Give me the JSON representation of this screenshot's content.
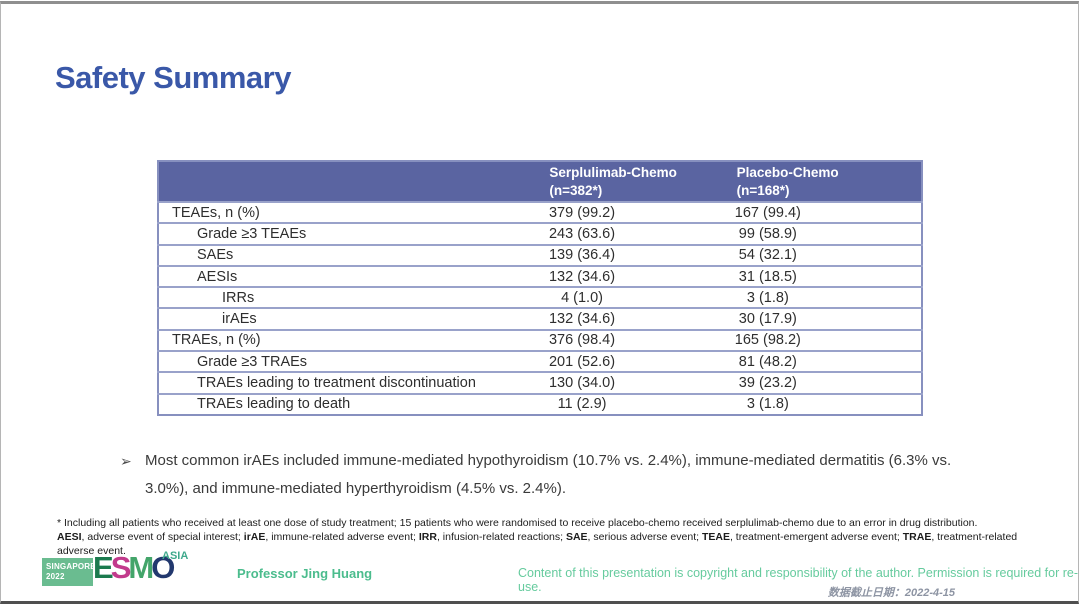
{
  "slide": {
    "title": "Safety Summary"
  },
  "table": {
    "col_headers": [
      {
        "line1": "Serplulimab-Chemo",
        "line2": "(n=382*)"
      },
      {
        "line1": "Placebo-Chemo",
        "line2": "(n=168*)"
      }
    ],
    "rows": [
      {
        "label": "TEAEs, n (%)",
        "indent": 0,
        "values": [
          "379 (99.2)",
          "167 (99.4)"
        ]
      },
      {
        "label": "Grade ≥3 TEAEs",
        "indent": 1,
        "values": [
          "243 (63.6)",
          "99 (58.9)"
        ]
      },
      {
        "label": "SAEs",
        "indent": 1,
        "values": [
          "139 (36.4)",
          "54 (32.1)"
        ]
      },
      {
        "label": "AESIs",
        "indent": 1,
        "values": [
          "132 (34.6)",
          "31 (18.5)"
        ]
      },
      {
        "label": "IRRs",
        "indent": 2,
        "values": [
          "4 (1.0)",
          "3 (1.8)"
        ]
      },
      {
        "label": "irAEs",
        "indent": 2,
        "values": [
          "132 (34.6)",
          "30 (17.9)"
        ]
      },
      {
        "label": "TRAEs, n (%)",
        "indent": 0,
        "values": [
          "376 (98.4)",
          "165 (98.2)"
        ]
      },
      {
        "label": "Grade ≥3 TRAEs",
        "indent": 1,
        "values": [
          "201 (52.6)",
          "81 (48.2)"
        ]
      },
      {
        "label": "TRAEs leading to treatment discontinuation",
        "indent": 1,
        "values": [
          "130 (34.0)",
          "39 (23.2)"
        ]
      },
      {
        "label": "TRAEs leading to death",
        "indent": 1,
        "values": [
          "11 (2.9)",
          "3 (1.8)"
        ]
      }
    ]
  },
  "bullet": {
    "marker": "➢",
    "text": "Most common irAEs included immune-mediated hypothyroidism (10.7% vs. 2.4%), immune-mediated dermatitis (6.3% vs. 3.0%), and immune-mediated hyperthyroidism (4.5% vs. 2.4%)."
  },
  "footnotes": {
    "line1": "* Including all patients who received at least one dose of study treatment; 15 patients who were randomised to receive placebo-chemo received serplulimab-chemo due to an error in drug distribution.",
    "line2_segments": [
      {
        "text": "AESI",
        "bold": true
      },
      {
        "text": ", adverse event of special interest; ",
        "bold": false
      },
      {
        "text": "irAE",
        "bold": true
      },
      {
        "text": ", immune-related adverse event; ",
        "bold": false
      },
      {
        "text": "IRR",
        "bold": true
      },
      {
        "text": ", infusion-related reactions; ",
        "bold": false
      },
      {
        "text": "SAE",
        "bold": true
      },
      {
        "text": ", serious adverse event; ",
        "bold": false
      },
      {
        "text": "TEAE",
        "bold": true
      },
      {
        "text": ", treatment-emergent adverse event; ",
        "bold": false
      },
      {
        "text": "TRAE",
        "bold": true
      },
      {
        "text": ", treatment-related adverse event.",
        "bold": false
      }
    ]
  },
  "footer": {
    "logo": {
      "badge_line1": "SINGAPORE",
      "badge_line2": "2022",
      "letters": [
        {
          "ch": "E",
          "color": "#1b7a4e"
        },
        {
          "ch": "S",
          "color": "#c23a8c"
        },
        {
          "ch": "M",
          "color": "#43a56a"
        },
        {
          "ch": "O",
          "color": "#22386e"
        }
      ],
      "region": "ASIA"
    },
    "presenter": "Professor Jing Huang",
    "copyright": "Content of this presentation is copyright and responsibility of the author. Permission is required for re-use.",
    "data_cutoff": "数据截止日期：2022-4-15"
  },
  "colors": {
    "title_blue": "#3a58a8",
    "table_header_bg": "#5a64a1",
    "table_border": "#8790bf",
    "badge_green": "#6abc90",
    "presenter_green": "#4bbc8d",
    "copyright_green": "#66cb9e",
    "cutoff_gray": "#8d94a3"
  }
}
